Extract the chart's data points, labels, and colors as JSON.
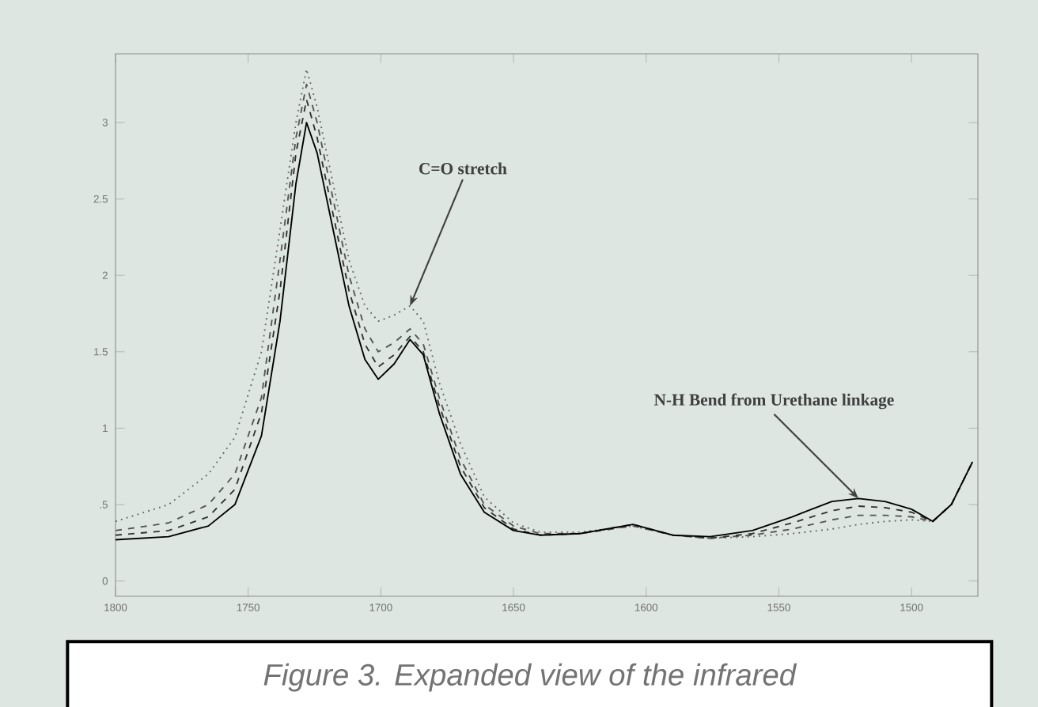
{
  "chart_data": {
    "type": "line",
    "annotations": [
      {
        "text": "C=O stretch",
        "x": 1689,
        "y": 1.8
      },
      {
        "text": "N-H Bend from Urethane linkage",
        "x": 1520,
        "y": 0.54
      },
      "Figure 3. Expanded view of the infrared"
    ],
    "x": [
      1800,
      1780,
      1765,
      1755,
      1745,
      1738,
      1732,
      1728,
      1724,
      1718,
      1712,
      1706,
      1701,
      1695,
      1689,
      1684,
      1678,
      1670,
      1661,
      1650,
      1640,
      1625,
      1605,
      1590,
      1576,
      1560,
      1545,
      1530,
      1520,
      1510,
      1500,
      1492,
      1485,
      1477
    ],
    "series": [
      {
        "color": "#666666",
        "line_style": "dotted",
        "values": [
          0.39,
          0.5,
          0.7,
          0.94,
          1.5,
          2.3,
          3.0,
          3.35,
          3.1,
          2.6,
          2.1,
          1.8,
          1.7,
          1.74,
          1.8,
          1.7,
          1.3,
          0.9,
          0.55,
          0.38,
          0.32,
          0.32,
          0.36,
          0.3,
          0.28,
          0.29,
          0.31,
          0.34,
          0.37,
          0.39,
          0.4,
          0.39,
          0.5,
          0.78
        ]
      },
      {
        "color": "#555555",
        "line_style": "dashed",
        "values": [
          0.33,
          0.38,
          0.5,
          0.7,
          1.2,
          2.1,
          2.9,
          3.25,
          3.0,
          2.5,
          2.0,
          1.65,
          1.5,
          1.56,
          1.65,
          1.55,
          1.2,
          0.8,
          0.5,
          0.36,
          0.31,
          0.31,
          0.36,
          0.3,
          0.28,
          0.3,
          0.34,
          0.4,
          0.43,
          0.43,
          0.42,
          0.39,
          0.5,
          0.78
        ]
      },
      {
        "color": "#333333",
        "line_style": "dashed",
        "values": [
          0.3,
          0.33,
          0.42,
          0.6,
          1.1,
          1.9,
          2.8,
          3.15,
          2.9,
          2.4,
          1.9,
          1.55,
          1.4,
          1.48,
          1.6,
          1.5,
          1.15,
          0.75,
          0.48,
          0.34,
          0.3,
          0.31,
          0.37,
          0.3,
          0.28,
          0.31,
          0.38,
          0.46,
          0.49,
          0.48,
          0.45,
          0.39,
          0.5,
          0.78
        ]
      },
      {
        "color": "#000000",
        "line_style": "solid",
        "values": [
          0.27,
          0.29,
          0.36,
          0.5,
          0.95,
          1.7,
          2.6,
          3.0,
          2.8,
          2.3,
          1.8,
          1.45,
          1.32,
          1.42,
          1.58,
          1.48,
          1.1,
          0.7,
          0.45,
          0.33,
          0.3,
          0.31,
          0.37,
          0.3,
          0.29,
          0.33,
          0.42,
          0.52,
          0.54,
          0.52,
          0.47,
          0.39,
          0.5,
          0.78
        ]
      }
    ],
    "xlim": [
      1800,
      1475
    ],
    "ylim": [
      -0.1,
      3.45
    ],
    "xticks": [
      1800,
      1750,
      1700,
      1650,
      1600,
      1550,
      1500
    ],
    "yticks": [
      0,
      {
        "value": 0.5,
        "label": ".5"
      },
      1,
      1.5,
      2,
      2.5,
      3
    ],
    "grid": false,
    "legend": false,
    "marker": "none"
  }
}
